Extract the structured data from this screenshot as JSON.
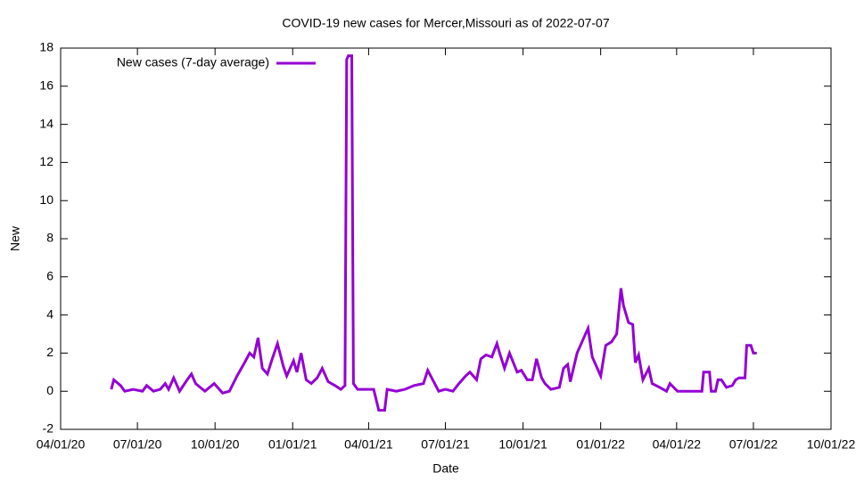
{
  "chart_data": {
    "type": "line",
    "title": "COVID-19 new cases for Mercer,Missouri as of 2022-07-07",
    "x_label": "Date",
    "y_label": "New",
    "legend": "top-left",
    "xlim": [
      "2020-04-01",
      "2022-10-01"
    ],
    "xticks": [
      {
        "value": "2020-04-01",
        "label": "04/01/20"
      },
      {
        "value": "2020-07-01",
        "label": "07/01/20"
      },
      {
        "value": "2020-10-01",
        "label": "10/01/20"
      },
      {
        "value": "2021-01-01",
        "label": "01/01/21"
      },
      {
        "value": "2021-04-01",
        "label": "04/01/21"
      },
      {
        "value": "2021-07-01",
        "label": "07/01/21"
      },
      {
        "value": "2021-10-01",
        "label": "10/01/21"
      },
      {
        "value": "2022-01-01",
        "label": "01/01/22"
      },
      {
        "value": "2022-04-01",
        "label": "04/01/22"
      },
      {
        "value": "2022-07-01",
        "label": "07/01/22"
      },
      {
        "value": "2022-10-01",
        "label": "10/01/22"
      }
    ],
    "ylim": [
      -2,
      18
    ],
    "yticks": [
      -2,
      0,
      2,
      4,
      6,
      8,
      10,
      12,
      14,
      16,
      18
    ],
    "x": [
      "2020-05-31",
      "2020-06-03",
      "2020-06-11",
      "2020-06-16",
      "2020-06-26",
      "2020-07-07",
      "2020-07-12",
      "2020-07-20",
      "2020-07-28",
      "2020-08-03",
      "2020-08-07",
      "2020-08-13",
      "2020-08-20",
      "2020-08-29",
      "2020-09-03",
      "2020-09-08",
      "2020-09-19",
      "2020-09-30",
      "2020-10-10",
      "2020-10-18",
      "2020-10-27",
      "2020-11-05",
      "2020-11-11",
      "2020-11-16",
      "2020-11-21",
      "2020-11-26",
      "2020-12-02",
      "2020-12-07",
      "2020-12-14",
      "2020-12-21",
      "2020-12-25",
      "2021-01-02",
      "2021-01-06",
      "2021-01-11",
      "2021-01-17",
      "2021-01-23",
      "2021-01-30",
      "2021-02-05",
      "2021-02-12",
      "2021-02-20",
      "2021-02-27",
      "2021-03-04",
      "2021-03-06",
      "2021-03-08",
      "2021-03-12",
      "2021-03-14",
      "2021-03-19",
      "2021-03-28",
      "2021-04-07",
      "2021-04-13",
      "2021-04-20",
      "2021-04-23",
      "2021-05-04",
      "2021-05-14",
      "2021-05-25",
      "2021-06-05",
      "2021-06-10",
      "2021-06-16",
      "2021-06-23",
      "2021-07-01",
      "2021-07-10",
      "2021-07-17",
      "2021-07-25",
      "2021-07-30",
      "2021-08-07",
      "2021-08-12",
      "2021-08-18",
      "2021-08-25",
      "2021-08-31",
      "2021-09-04",
      "2021-09-09",
      "2021-09-15",
      "2021-09-24",
      "2021-09-29",
      "2021-10-06",
      "2021-10-12",
      "2021-10-17",
      "2021-10-23",
      "2021-10-27",
      "2021-11-03",
      "2021-11-13",
      "2021-11-18",
      "2021-11-23",
      "2021-11-26",
      "2021-12-04",
      "2021-12-12",
      "2021-12-17",
      "2021-12-22",
      "2021-12-28",
      "2022-01-01",
      "2022-01-07",
      "2022-01-14",
      "2022-01-20",
      "2022-01-25",
      "2022-01-28",
      "2022-02-03",
      "2022-02-08",
      "2022-02-11",
      "2022-02-15",
      "2022-02-20",
      "2022-02-27",
      "2022-03-03",
      "2022-03-12",
      "2022-03-20",
      "2022-03-24",
      "2022-04-02",
      "2022-04-12",
      "2022-04-23",
      "2022-05-01",
      "2022-05-03",
      "2022-05-10",
      "2022-05-12",
      "2022-05-17",
      "2022-05-20",
      "2022-05-24",
      "2022-05-30",
      "2022-06-06",
      "2022-06-10",
      "2022-06-14",
      "2022-06-21",
      "2022-06-23",
      "2022-06-28",
      "2022-07-01",
      "2022-07-05"
    ],
    "series": [
      {
        "name": "New cases (7-day average)",
        "color": "#9400d3",
        "values": [
          0.1,
          0.6,
          0.3,
          0,
          0.1,
          0,
          0.3,
          0,
          0.1,
          0.4,
          0.1,
          0.7,
          0,
          0.6,
          0.9,
          0.4,
          0,
          0.4,
          -0.1,
          0,
          0.8,
          1.5,
          2.0,
          1.8,
          2.8,
          1.2,
          0.9,
          1.6,
          2.5,
          1.3,
          0.8,
          1.6,
          1.0,
          2.0,
          0.6,
          0.4,
          0.7,
          1.2,
          0.5,
          0.3,
          0.1,
          0.3,
          17.4,
          17.6,
          17.6,
          0.4,
          0.1,
          0.1,
          0.1,
          -1.0,
          -1.0,
          0.1,
          0,
          0.1,
          0.3,
          0.4,
          1.1,
          0.6,
          0,
          0.1,
          0,
          0.4,
          0.8,
          1.0,
          0.6,
          1.7,
          1.9,
          1.8,
          2.5,
          1.9,
          1.2,
          2.0,
          1.0,
          1.1,
          0.6,
          0.6,
          1.7,
          0.7,
          0.4,
          0.1,
          0.2,
          1.2,
          1.4,
          0.5,
          2.0,
          2.8,
          3.3,
          1.8,
          1.2,
          0.8,
          2.4,
          2.6,
          3.0,
          5.4,
          4.5,
          3.6,
          3.5,
          1.5,
          1.9,
          0.6,
          1.2,
          0.4,
          0.2,
          0,
          0.4,
          0,
          0,
          0,
          0,
          1.0,
          1.0,
          0,
          0,
          0.6,
          0.6,
          0.2,
          0.3,
          0.6,
          0.7,
          0.7,
          2.4,
          2.4,
          2.0,
          2.0
        ]
      }
    ]
  }
}
